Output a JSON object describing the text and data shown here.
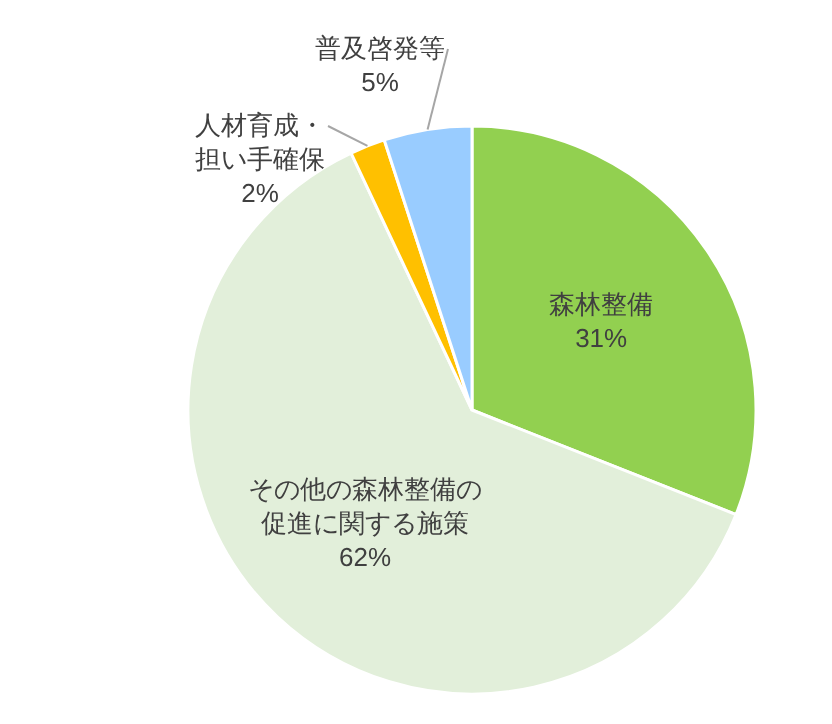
{
  "chart_data": {
    "type": "pie",
    "categories": [
      "森林整備",
      "その他の森林整備の促進に関する施策",
      "人材育成・担い手確保",
      "普及啓発等"
    ],
    "values": [
      31,
      62,
      2,
      5
    ],
    "colors": [
      "#92d050",
      "#e2efda",
      "#ffc000",
      "#99ccff"
    ],
    "value_labels": [
      "31%",
      "62%",
      "2%",
      "5%"
    ]
  }
}
